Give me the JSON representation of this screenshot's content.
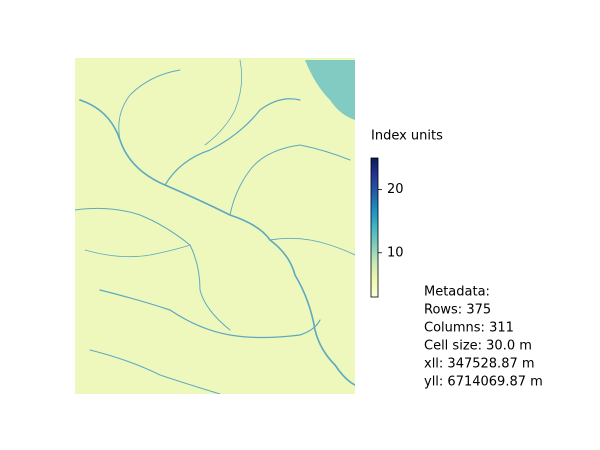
{
  "chart_data": {
    "type": "raster",
    "colorbar": {
      "label": "Index units",
      "clim": [
        3,
        25
      ],
      "ticks": [
        10,
        20
      ],
      "colormap": [
        "#ffffd9",
        "#edf8b1",
        "#c7e9b4",
        "#7fcdbb",
        "#41b6c4",
        "#1d91c0",
        "#225ea8",
        "#253494",
        "#081d58"
      ]
    },
    "metadata": {
      "title": "Metadata:",
      "lines": [
        "Rows: 375",
        "Columns: 311",
        "Cell size: 30.0 m",
        "xll: 347528.87 m",
        "yll: 6714069.87 m"
      ]
    }
  }
}
